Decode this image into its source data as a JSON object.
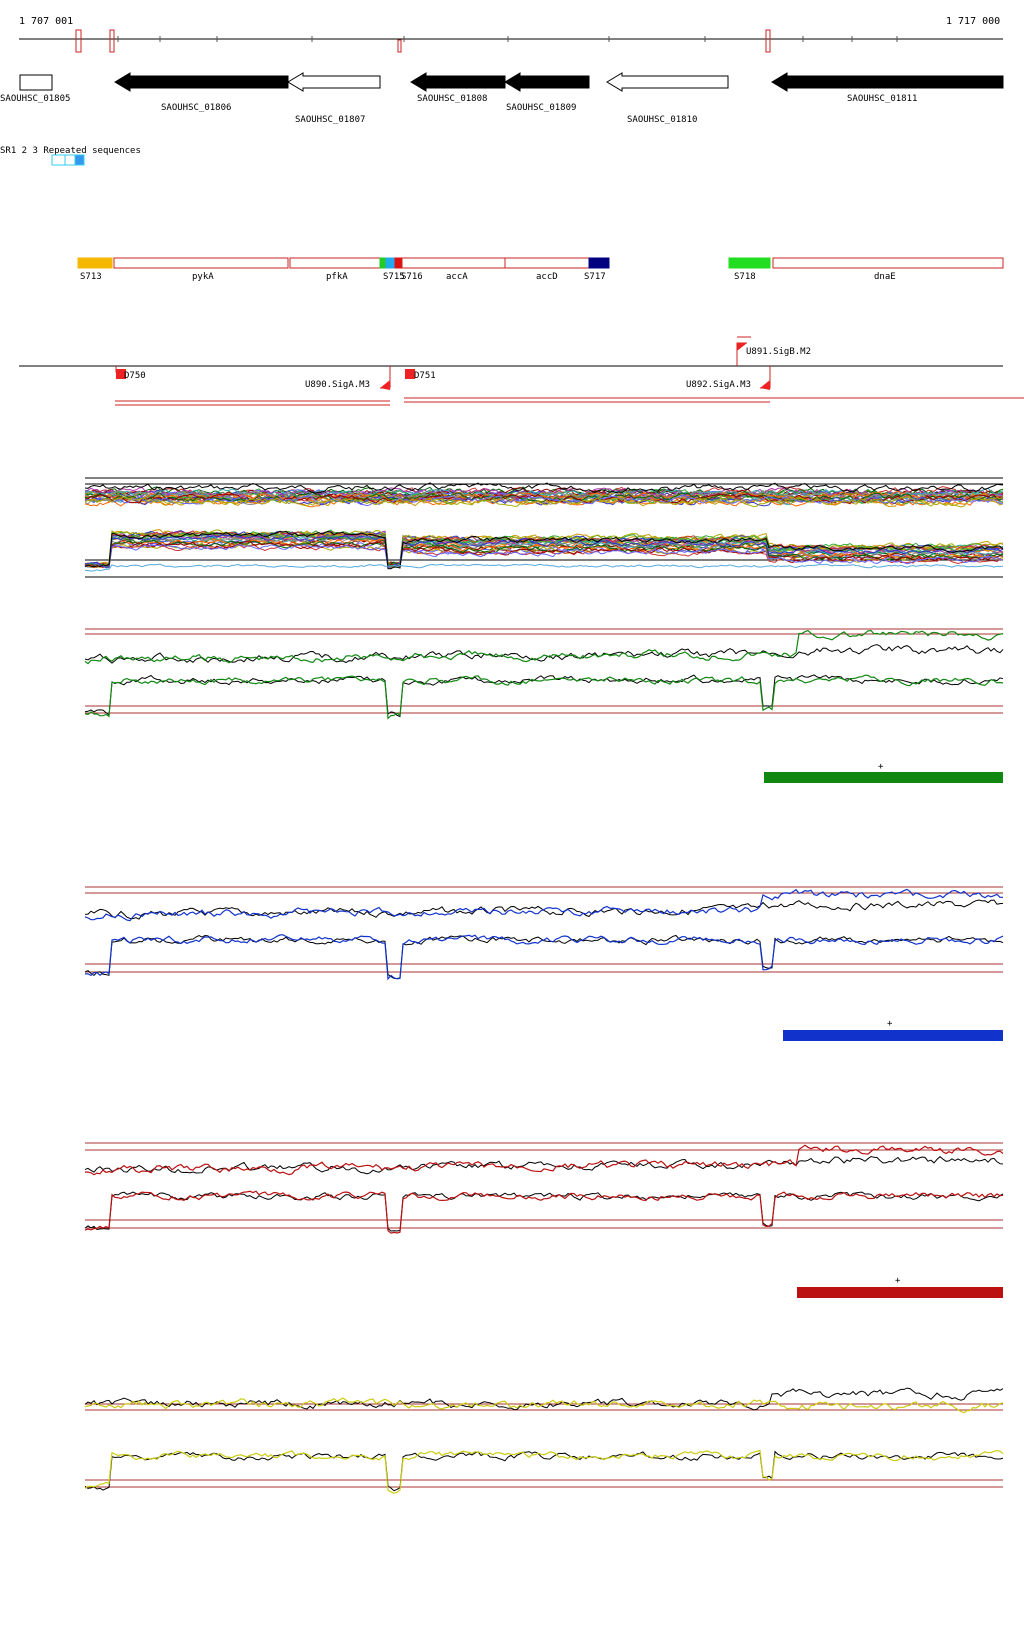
{
  "coords": {
    "start": "1 707 001",
    "end": "1 717 000"
  },
  "genes": [
    {
      "name": "SAOUHSC_01805",
      "strand": "plain"
    },
    {
      "name": "SAOUHSC_01806",
      "strand": "reverse",
      "filled": true
    },
    {
      "name": "SAOUHSC_01807",
      "strand": "reverse",
      "filled": false
    },
    {
      "name": "SAOUHSC_01808",
      "strand": "reverse",
      "filled": true
    },
    {
      "name": "SAOUHSC_01809",
      "strand": "reverse",
      "filled": true
    },
    {
      "name": "SAOUHSC_01810",
      "strand": "reverse",
      "filled": false
    },
    {
      "name": "SAOUHSC_01811",
      "strand": "reverse",
      "filled": true
    }
  ],
  "repeat_label": "SR1 2 3 Repeated sequences",
  "features": [
    {
      "label": "S713",
      "color": "#f5b800"
    },
    {
      "label": "pykA",
      "color": "#ffffff"
    },
    {
      "label": "pfkA",
      "color": "#ffffff"
    },
    {
      "label": "S715",
      "color": "#22cc22"
    },
    {
      "label": "S716",
      "color": "#dd1111"
    },
    {
      "label": "accA",
      "color": "#ffffff"
    },
    {
      "label": "accD",
      "color": "#ffffff"
    },
    {
      "label": "S717",
      "color": "#000080"
    },
    {
      "label": "S718",
      "color": "#22dd22"
    },
    {
      "label": "dnaE",
      "color": "#ffffff"
    }
  ],
  "promoters": [
    {
      "label": "D750"
    },
    {
      "label": "U890.SigA.M3"
    },
    {
      "label": "D751"
    },
    {
      "label": "U891.SigB.M2"
    },
    {
      "label": "U892.SigA.M3"
    }
  ],
  "panels": [
    {
      "color": "#118811",
      "strand": "+"
    },
    {
      "color": "#1133cc",
      "strand": "+"
    },
    {
      "color": "#bb1111",
      "strand": "+"
    },
    {
      "color": "#cccc11"
    }
  ]
}
